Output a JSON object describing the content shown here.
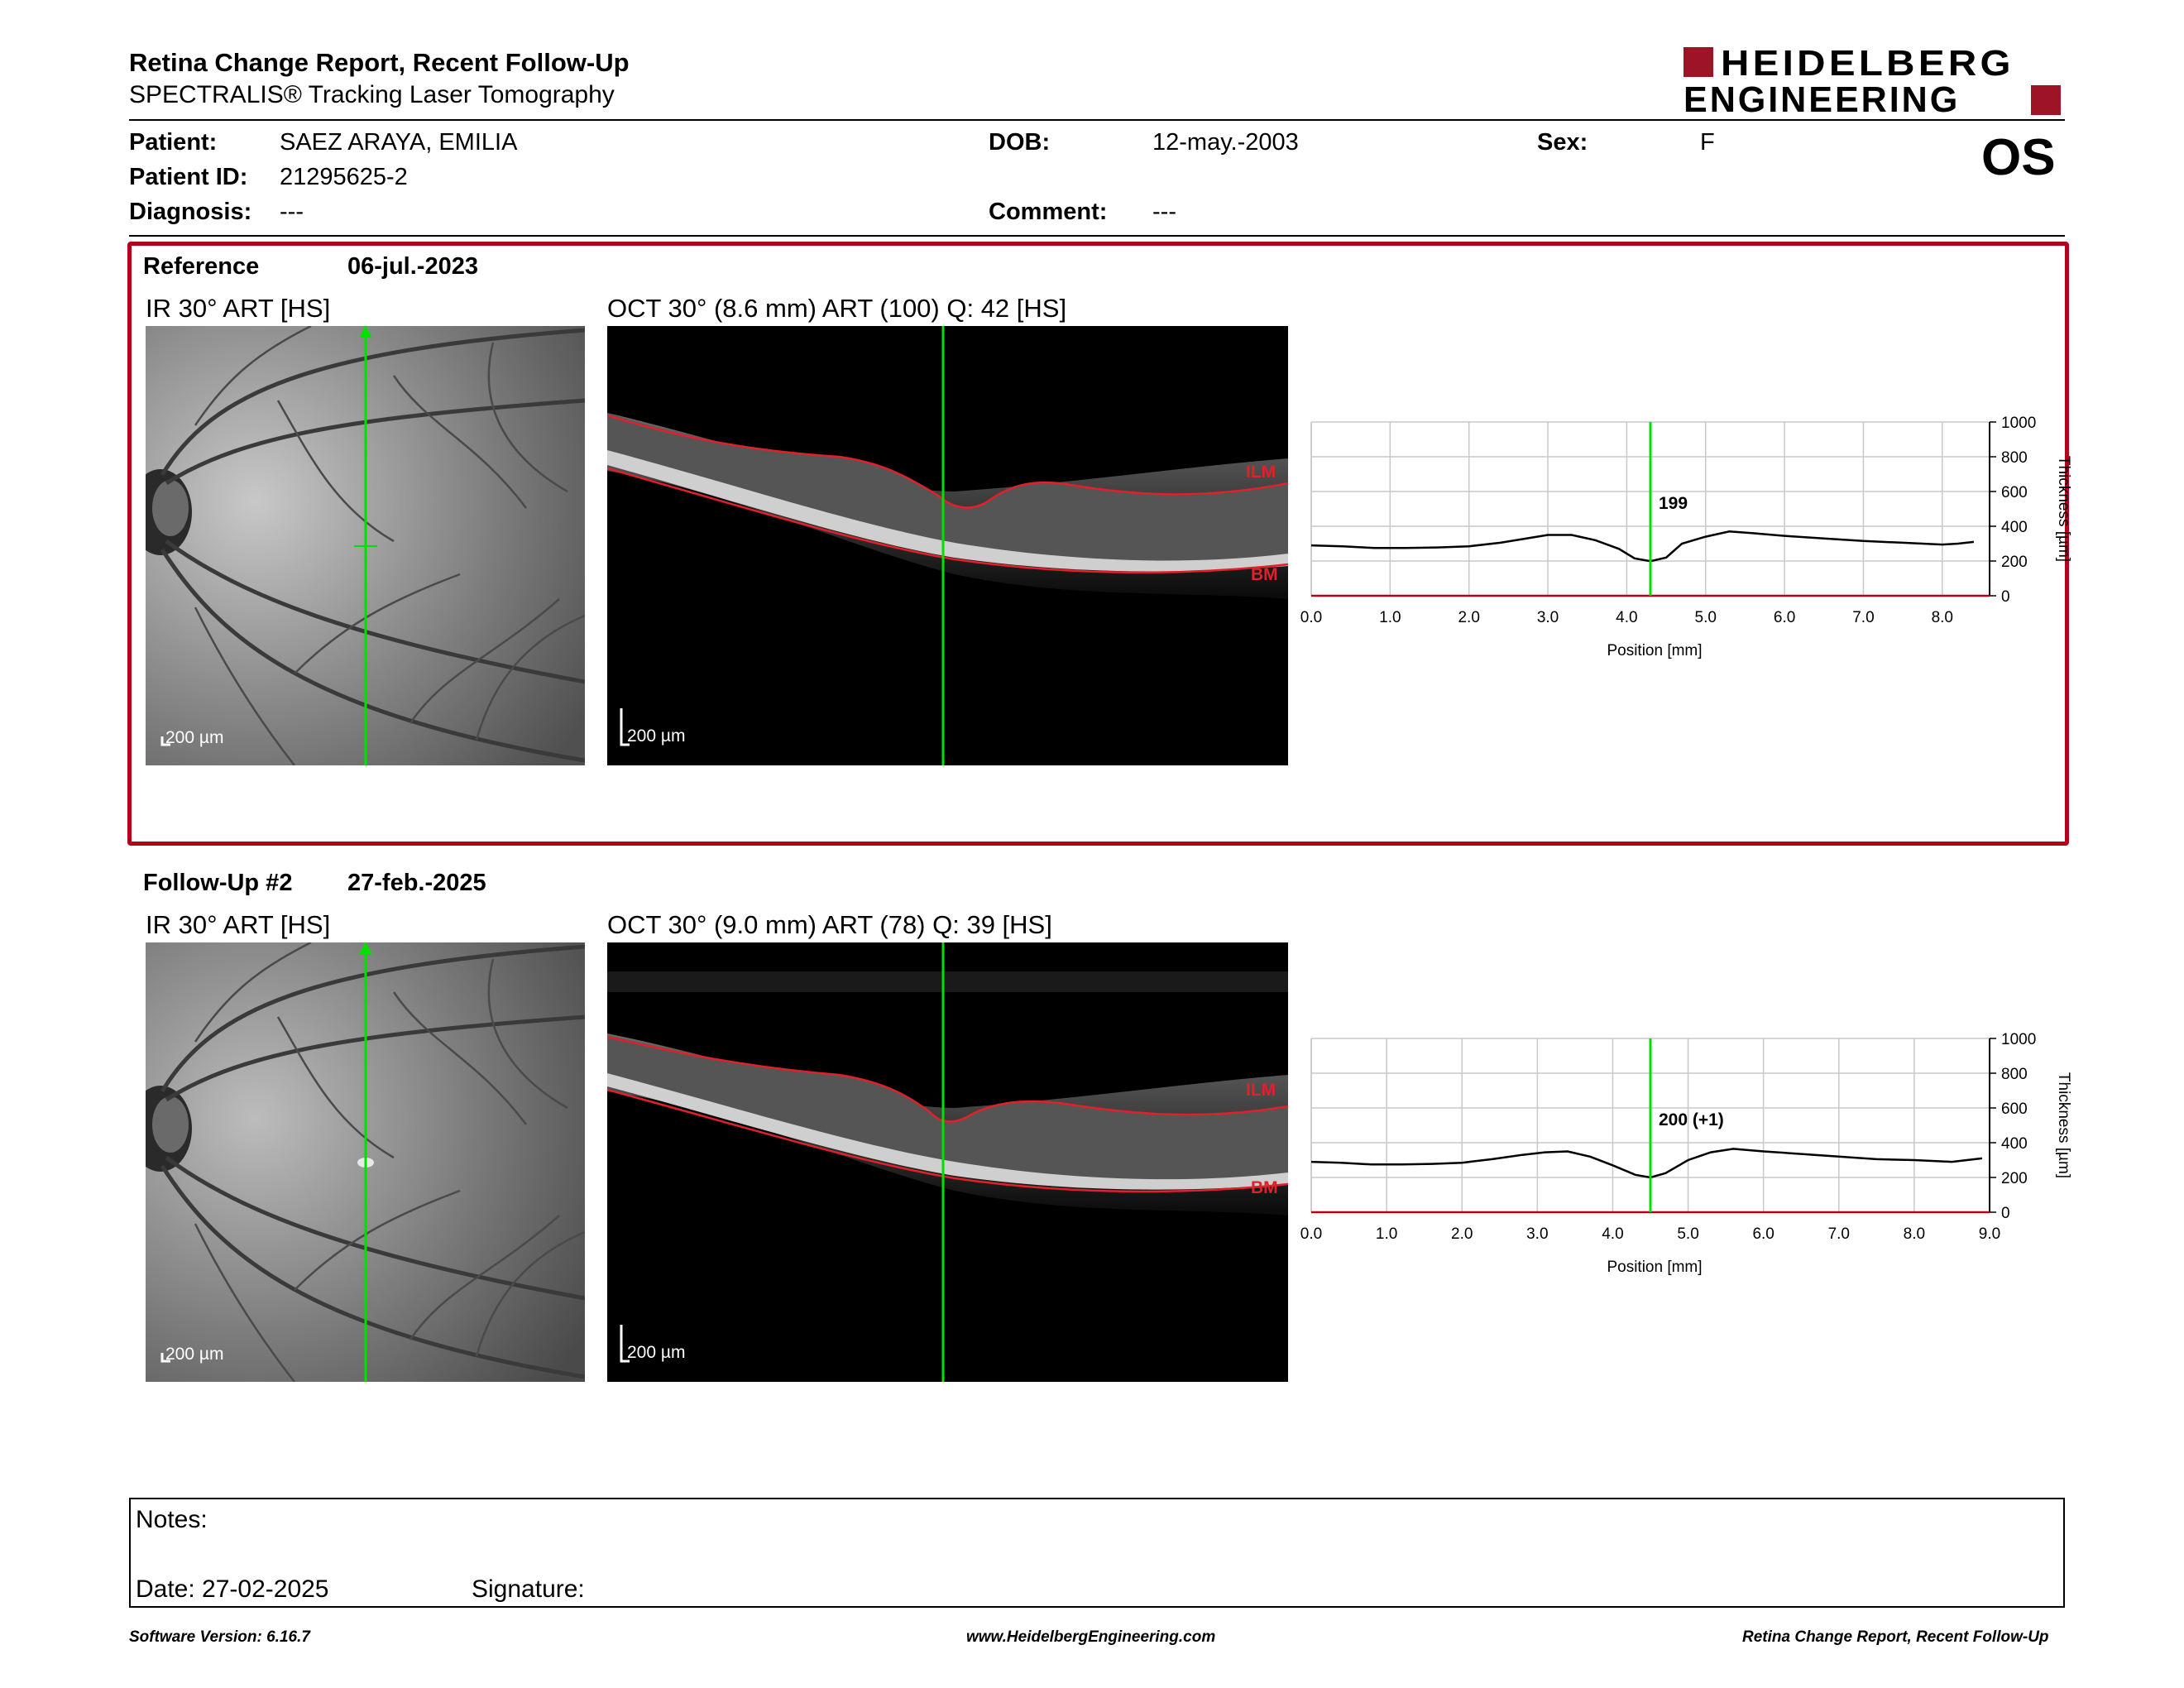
{
  "header": {
    "title": "Retina Change Report, Recent Follow-Up",
    "subtitle": "SPECTRALIS® Tracking Laser Tomography",
    "logo_line1": "HEIDELBERG",
    "logo_line2": "ENGINEERING",
    "eye": "OS"
  },
  "patient": {
    "patient_label": "Patient:",
    "patient_value": "SAEZ ARAYA, EMILIA",
    "id_label": "Patient ID:",
    "id_value": "21295625-2",
    "diagnosis_label": "Diagnosis:",
    "diagnosis_value": "---",
    "dob_label": "DOB:",
    "dob_value": "12-may.-2003",
    "comment_label": "Comment:",
    "comment_value": "---",
    "sex_label": "Sex:",
    "sex_value": "F"
  },
  "reference": {
    "label": "Reference",
    "date": "06-jul.-2023",
    "ir_title": "IR 30° ART [HS]",
    "oct_title": "OCT 30° (8.6 mm) ART (100) Q: 42 [HS]",
    "scale": "200 µm",
    "ilm": "ILM",
    "bm": "BM"
  },
  "followup": {
    "label": "Follow-Up #2",
    "date": "27-feb.-2025",
    "ir_title": "IR 30° ART [HS]",
    "oct_title": "OCT 30° (9.0 mm) ART (78) Q: 39 [HS]",
    "scale": "200 µm",
    "ilm": "ILM",
    "bm": "BM"
  },
  "notes": {
    "notes_label": "Notes:",
    "date_label": "Date: 27-02-2025",
    "signature_label": "Signature:"
  },
  "footer": {
    "left": "Software Version: 6.16.7",
    "center": "www.HeidelbergEngineering.com",
    "right": "Retina Change Report, Recent Follow-Up"
  },
  "colors": {
    "brand_red": "#b3001b",
    "marker_green": "#00e000",
    "segmentation_red": "#e0202a"
  },
  "chart_data": [
    {
      "type": "line",
      "xlabel": "Position [mm]",
      "ylabel": "Thickness [µm]",
      "xlim": [
        0,
        8.6
      ],
      "ylim": [
        0,
        1000
      ],
      "xticks": [
        "0.0",
        "1.0",
        "2.0",
        "3.0",
        "4.0",
        "5.0",
        "6.0",
        "7.0",
        "8.0"
      ],
      "yticks": [
        "0",
        "200",
        "400",
        "600",
        "800",
        "1000"
      ],
      "marker_x": 4.3,
      "marker_label": "199",
      "x": [
        0.0,
        0.4,
        0.8,
        1.2,
        1.6,
        2.0,
        2.4,
        2.8,
        3.0,
        3.3,
        3.6,
        3.9,
        4.1,
        4.3,
        4.5,
        4.7,
        5.0,
        5.3,
        5.6,
        6.0,
        6.5,
        7.0,
        7.5,
        8.0,
        8.2,
        8.4
      ],
      "y": [
        290,
        285,
        275,
        275,
        278,
        285,
        305,
        335,
        350,
        350,
        320,
        270,
        215,
        199,
        220,
        300,
        340,
        370,
        360,
        345,
        330,
        315,
        305,
        295,
        300,
        310
      ]
    },
    {
      "type": "line",
      "xlabel": "Position [mm]",
      "ylabel": "Thickness [µm]",
      "xlim": [
        0,
        9.0
      ],
      "ylim": [
        0,
        1000
      ],
      "xticks": [
        "0.0",
        "1.0",
        "2.0",
        "3.0",
        "4.0",
        "5.0",
        "6.0",
        "7.0",
        "8.0",
        "9.0"
      ],
      "yticks": [
        "0",
        "200",
        "400",
        "600",
        "800",
        "1000"
      ],
      "marker_x": 4.5,
      "marker_label": "200 (+1)",
      "x": [
        0.0,
        0.4,
        0.8,
        1.2,
        1.6,
        2.0,
        2.4,
        2.8,
        3.1,
        3.4,
        3.7,
        4.0,
        4.3,
        4.5,
        4.7,
        5.0,
        5.3,
        5.6,
        6.0,
        6.5,
        7.0,
        7.5,
        8.0,
        8.5,
        8.9
      ],
      "y": [
        290,
        285,
        275,
        275,
        278,
        285,
        305,
        330,
        345,
        350,
        320,
        270,
        215,
        200,
        225,
        300,
        345,
        365,
        350,
        335,
        320,
        305,
        300,
        290,
        310
      ]
    }
  ]
}
